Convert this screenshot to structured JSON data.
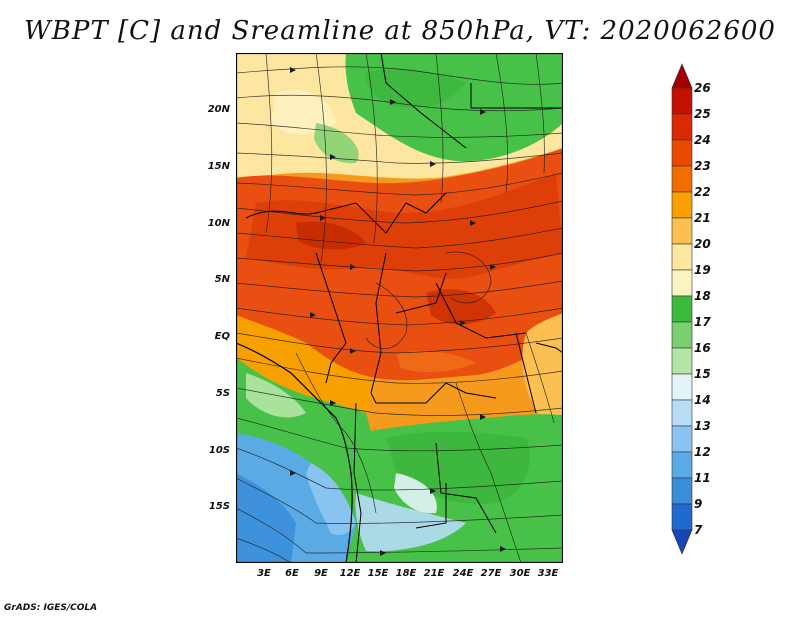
{
  "title": "WBPT [C] and Sreamline at 850hPa, VT: 2020062600",
  "credit": "GrADS: IGES/COLA",
  "y_axis_labels": [
    "20N",
    "15N",
    "10N",
    "5N",
    "EQ",
    "5S",
    "10S",
    "15S"
  ],
  "x_axis_labels": [
    "3E",
    "6E",
    "9E",
    "12E",
    "15E",
    "18E",
    "21E",
    "24E",
    "27E",
    "30E",
    "33E"
  ],
  "colorbar": {
    "labels": [
      "26",
      "25",
      "24",
      "23",
      "22",
      "21",
      "20",
      "19",
      "18",
      "17",
      "16",
      "15",
      "14",
      "13",
      "12",
      "11",
      "9",
      "7"
    ],
    "colors": [
      "#a50000",
      "#c41000",
      "#dc2a00",
      "#ea4a00",
      "#f26d00",
      "#f8a000",
      "#fbc050",
      "#fde7a0",
      "#f9f4c2",
      "#3cba3c",
      "#78d06e",
      "#b3e6a4",
      "#e3f4f8",
      "#b6dcf6",
      "#88c4ef",
      "#5aaae6",
      "#3a8ed8",
      "#1e6ad0",
      "#1446b8"
    ]
  },
  "field_colors": {
    "orange_red": "#e94f10",
    "green": "#47c147",
    "light_yellow": "#fde7a0",
    "blue": "#5aaae6"
  }
}
